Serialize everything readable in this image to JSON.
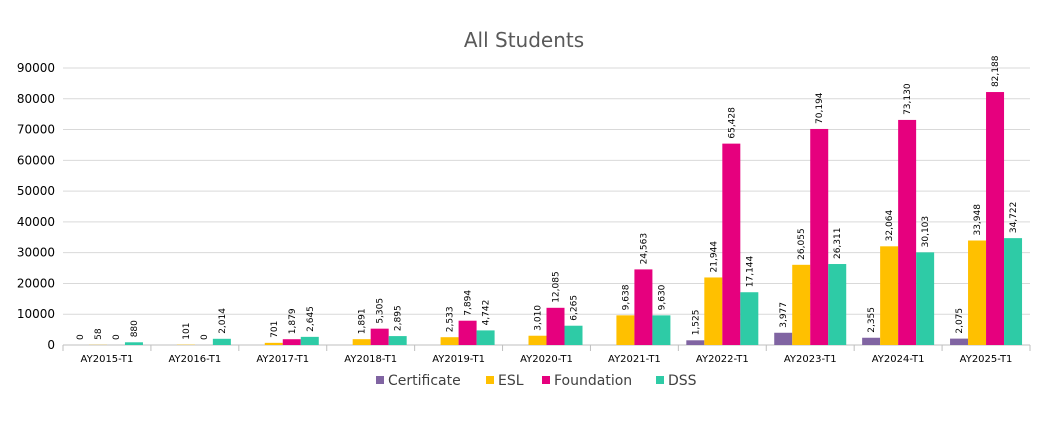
{
  "chart_data": {
    "type": "bar",
    "title": "All Students",
    "xlabel": "",
    "ylabel": "",
    "ylim": [
      0,
      90000
    ],
    "yticks": [
      0,
      10000,
      20000,
      30000,
      40000,
      50000,
      60000,
      70000,
      80000,
      90000
    ],
    "grid": true,
    "legend_position": "bottom-center",
    "categories": [
      "AY2015-T1",
      "AY2016-T1",
      "AY2017-T1",
      "AY2018-T1",
      "AY2019-T1",
      "AY2020-T1",
      "AY2021-T1",
      "AY2022-T1",
      "AY2023-T1",
      "AY2024-T1",
      "AY2025-T1"
    ],
    "series": [
      {
        "name": "Certificate",
        "color": "#8064a2",
        "values": [
          0,
          null,
          null,
          null,
          null,
          null,
          null,
          1525,
          3977,
          2355,
          2075
        ],
        "labels": [
          "0",
          "",
          "",
          "",
          "",
          "",
          "",
          "1,525",
          "3,977",
          "2,355",
          "2,075"
        ]
      },
      {
        "name": "ESL",
        "color": "#ffc000",
        "values": [
          58,
          101,
          701,
          1891,
          2533,
          3010,
          9638,
          21944,
          26055,
          32064,
          33948
        ],
        "labels": [
          "58",
          "101",
          "701",
          "1,891",
          "2,533",
          "3,010",
          "9,638",
          "21,944",
          "26,055",
          "32,064",
          "33,948"
        ]
      },
      {
        "name": "Foundation",
        "color": "#e6007e",
        "values": [
          0,
          0,
          1879,
          5305,
          7894,
          12085,
          24563,
          65428,
          70194,
          73130,
          82188
        ],
        "labels": [
          "0",
          "0",
          "1,879",
          "5,305",
          "7,894",
          "12,085",
          "24,563",
          "65,428",
          "70,194",
          "73,130",
          "82,188"
        ]
      },
      {
        "name": "DSS",
        "color": "#2ecba6",
        "values": [
          880,
          2014,
          2645,
          2895,
          4742,
          6265,
          9630,
          17144,
          26311,
          30103,
          34722
        ],
        "labels": [
          "880",
          "2,014",
          "2,645",
          "2,895",
          "4,742",
          "6,265",
          "9,630",
          "17,144",
          "26,311",
          "30,103",
          "34,722"
        ]
      }
    ]
  }
}
